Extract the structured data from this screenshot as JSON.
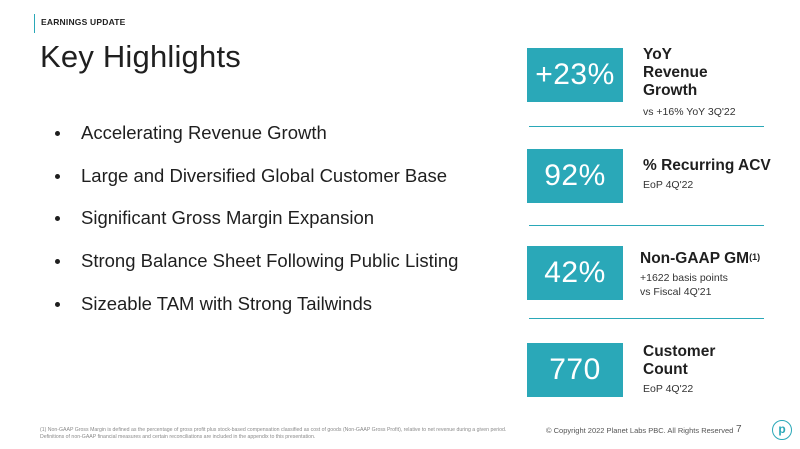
{
  "header": {
    "section_label": "EARNINGS UPDATE",
    "title": "Key Highlights"
  },
  "bullets": [
    "Accelerating Revenue Growth",
    "Large and Diversified Global Customer Base",
    "Significant Gross Margin Expansion",
    "Strong Balance Sheet Following Public Listing",
    "Sizeable TAM with Strong Tailwinds"
  ],
  "kpis": [
    {
      "value": "+23%",
      "label_lines": [
        "YoY",
        "Revenue",
        "Growth"
      ],
      "sub_lines": [
        "vs +16% YoY 3Q'22"
      ]
    },
    {
      "value": "92%",
      "label_lines": [
        "% Recurring ACV"
      ],
      "sub_lines": [
        "EoP 4Q'22"
      ]
    },
    {
      "value": "42%",
      "label_lines": [
        "Non-GAAP GM"
      ],
      "label_sup": "(1)",
      "sub_lines": [
        "+1622 basis points",
        "vs Fiscal 4Q'21"
      ]
    },
    {
      "value": "770",
      "label_lines": [
        "Customer",
        "Count"
      ],
      "sub_lines": [
        "EoP 4Q'22"
      ]
    }
  ],
  "footer": {
    "footnote": "(1) Non-GAAP Gross Margin is defined as the percentage of gross profit plus stock-based compensation classified as cost of goods (Non-GAAP Gross Profit), relative to net revenue during a given period. Definitions of non-GAAP financial measures and certain reconciliations are included in the appendix to this presentation.",
    "copyright": "© Copyright 2022 Planet Labs PBC. All Rights Reserved",
    "page_number": "7",
    "logo_letter": "p"
  },
  "colors": {
    "accent": "#2aa8b8",
    "text": "#1f1f1f"
  }
}
